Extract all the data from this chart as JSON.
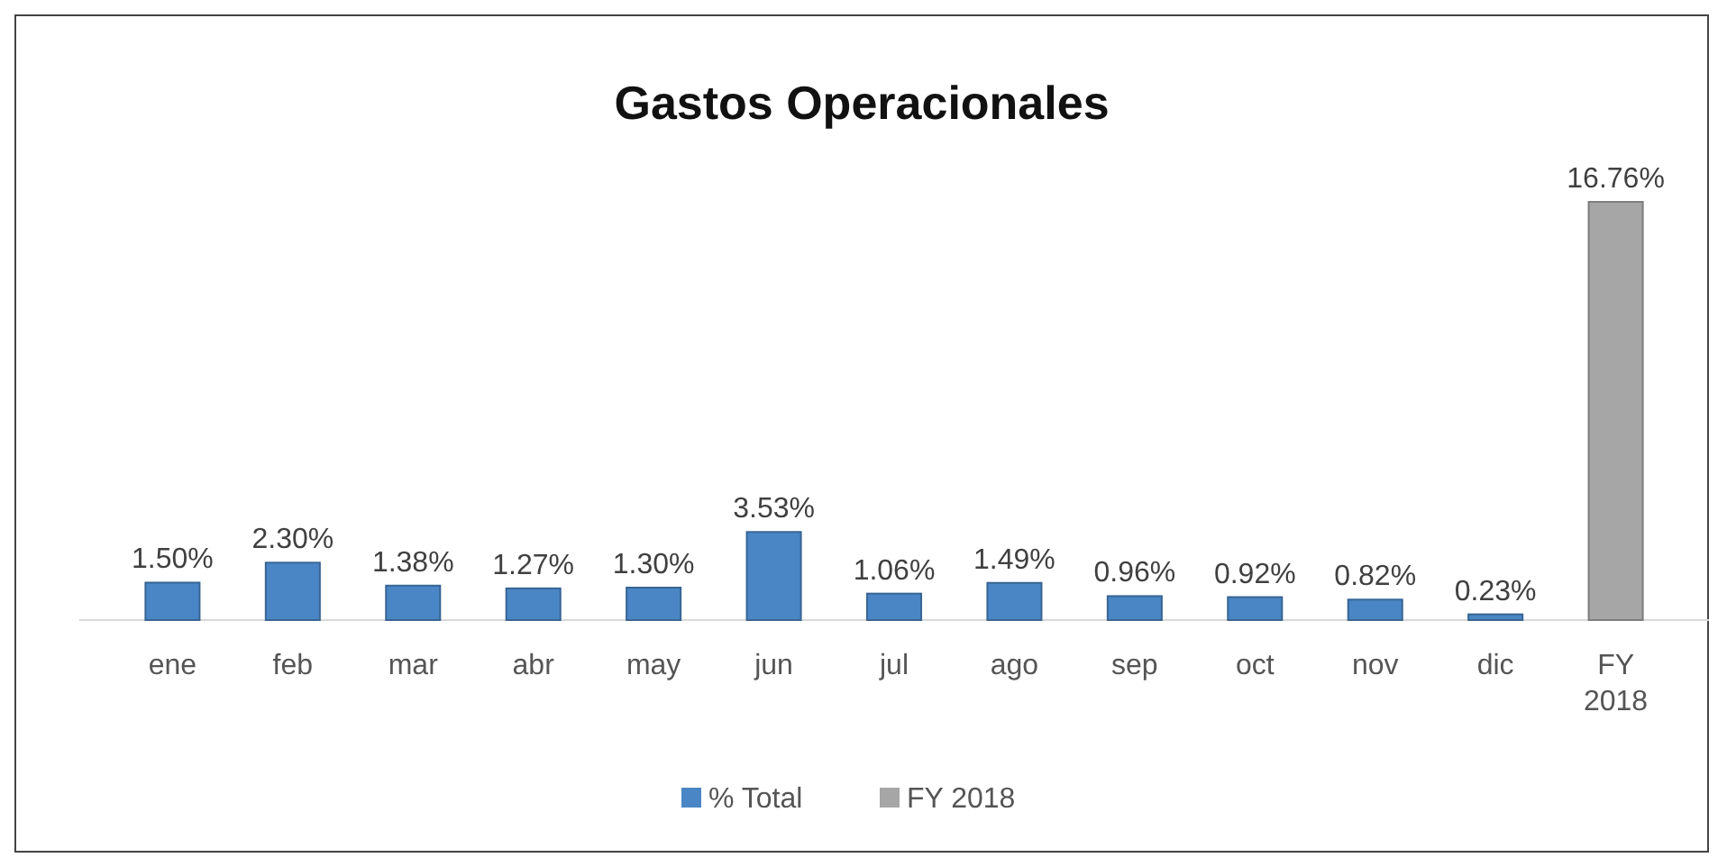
{
  "chart_data": {
    "type": "bar",
    "title": "Gastos Operacionales",
    "categories": [
      "ene",
      "feb",
      "mar",
      "abr",
      "may",
      "jun",
      "jul",
      "ago",
      "sep",
      "oct",
      "nov",
      "dic",
      "FY 2018"
    ],
    "series": [
      {
        "name": "% Total",
        "color": "#4a86c5",
        "values": [
          1.5,
          2.3,
          1.38,
          1.27,
          1.3,
          3.53,
          1.06,
          1.49,
          0.96,
          0.92,
          0.82,
          0.23,
          null
        ],
        "value_labels": [
          "1.50%",
          "2.30%",
          "1.38%",
          "1.27%",
          "1.30%",
          "3.53%",
          "1.06%",
          "1.49%",
          "0.96%",
          "0.92%",
          "0.82%",
          "0.23%",
          null
        ]
      },
      {
        "name": "FY 2018",
        "color": "#a6a6a6",
        "values": [
          null,
          null,
          null,
          null,
          null,
          null,
          null,
          null,
          null,
          null,
          null,
          null,
          16.76
        ],
        "value_labels": [
          null,
          null,
          null,
          null,
          null,
          null,
          null,
          null,
          null,
          null,
          null,
          null,
          "16.76%"
        ]
      }
    ],
    "legend": "bottom"
  }
}
